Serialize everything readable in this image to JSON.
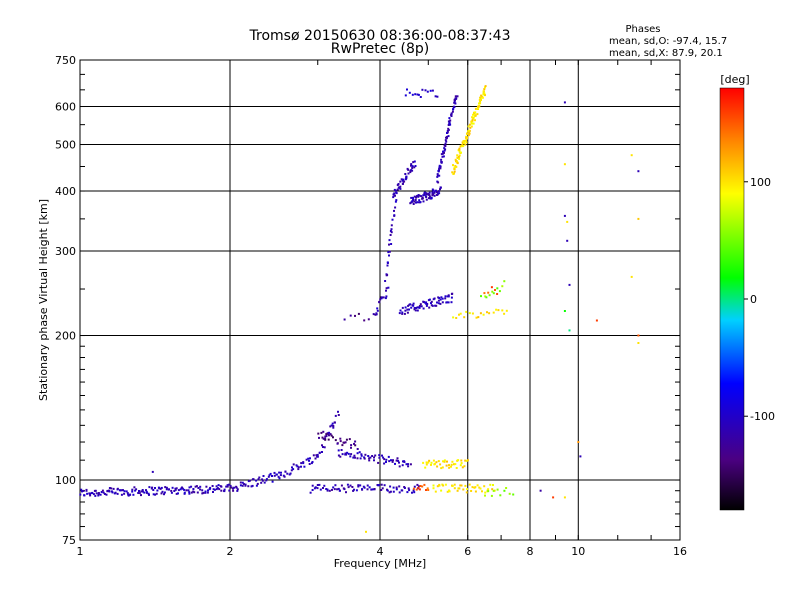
{
  "chart_data": {
    "type": "scatter",
    "title_line1": "Tromsø 20150630 08:36:00-08:37:43",
    "title_line2": "RwPretec (8p)",
    "xlabel": "Frequency [MHz]",
    "ylabel": "Stationary phase Virtual Height [km]",
    "x_scale": "log",
    "y_scale": "log",
    "xlim": [
      1,
      16
    ],
    "ylim": [
      75,
      750
    ],
    "x_ticks": [
      1,
      2,
      4,
      6,
      8,
      10,
      16
    ],
    "y_ticks": [
      75,
      100,
      200,
      300,
      400,
      500,
      600,
      750
    ],
    "grid": true,
    "phases_header": "Phases",
    "phases_o": "mean, sd,O: -97.4, 15.7",
    "phases_x": "mean, sd,X:  87.9, 20.1",
    "colorbar": {
      "label": "[deg]",
      "range": [
        -180,
        180
      ],
      "ticks": [
        -100,
        0,
        100
      ],
      "colormap": "rainbow"
    },
    "series": [
      {
        "phase": -110,
        "segments": [
          {
            "x0": 1.0,
            "x1": 2.0,
            "y0": 94,
            "y1": 96,
            "n": 160
          },
          {
            "x0": 2.0,
            "x1": 2.5,
            "y0": 96,
            "y1": 102,
            "n": 45
          },
          {
            "x0": 2.5,
            "x1": 3.0,
            "y0": 102,
            "y1": 112,
            "n": 35
          },
          {
            "x0": 3.0,
            "x1": 3.3,
            "y0": 112,
            "y1": 138,
            "n": 25
          },
          {
            "x0": 3.3,
            "x1": 4.6,
            "y0": 114,
            "y1": 108,
            "n": 60
          },
          {
            "x0": 2.9,
            "x1": 4.8,
            "y0": 96,
            "y1": 96,
            "n": 80
          }
        ]
      },
      {
        "phase": -135,
        "segments": [
          {
            "x0": 3.0,
            "x1": 3.6,
            "y0": 125,
            "y1": 118,
            "n": 30
          },
          {
            "x0": 3.4,
            "x1": 3.8,
            "y0": 218,
            "y1": 218,
            "n": 6
          }
        ]
      },
      {
        "phase": -110,
        "segments": [
          {
            "x0": 3.9,
            "x1": 4.15,
            "y0": 220,
            "y1": 250,
            "n": 18
          },
          {
            "x0": 4.1,
            "x1": 4.3,
            "y0": 260,
            "y1": 380,
            "n": 25
          },
          {
            "x0": 4.25,
            "x1": 4.7,
            "y0": 390,
            "y1": 460,
            "n": 45
          },
          {
            "x0": 4.6,
            "x1": 5.3,
            "y0": 380,
            "y1": 400,
            "n": 70
          },
          {
            "x0": 5.2,
            "x1": 5.7,
            "y0": 420,
            "y1": 640,
            "n": 70
          },
          {
            "x0": 4.4,
            "x1": 5.6,
            "y0": 225,
            "y1": 240,
            "n": 70
          }
        ]
      },
      {
        "phase": -95,
        "segments": [
          {
            "x0": 4.5,
            "x1": 5.2,
            "y0": 640,
            "y1": 640,
            "n": 15
          }
        ]
      },
      {
        "phase": 100,
        "segments": [
          {
            "x0": 5.6,
            "x1": 6.5,
            "y0": 440,
            "y1": 650,
            "n": 110
          },
          {
            "x0": 4.9,
            "x1": 6.0,
            "y0": 108,
            "y1": 108,
            "n": 40
          },
          {
            "x0": 5.1,
            "x1": 6.8,
            "y0": 96,
            "y1": 96,
            "n": 45
          },
          {
            "x0": 5.6,
            "x1": 7.2,
            "y0": 222,
            "y1": 222,
            "n": 20
          }
        ]
      },
      {
        "phase": 55,
        "segments": [
          {
            "x0": 6.5,
            "x1": 7.4,
            "y0": 94,
            "y1": 95,
            "n": 10
          },
          {
            "x0": 6.4,
            "x1": 7.1,
            "y0": 240,
            "y1": 255,
            "n": 10
          }
        ]
      },
      {
        "phase": 150,
        "segments": [
          {
            "x0": 4.7,
            "x1": 5.0,
            "y0": 96,
            "y1": 96,
            "n": 10
          },
          {
            "x0": 6.5,
            "x1": 6.9,
            "y0": 248,
            "y1": 248,
            "n": 5
          }
        ]
      }
    ],
    "points": [
      {
        "x": 1.4,
        "y": 104,
        "phase": -110
      },
      {
        "x": 3.75,
        "y": 78,
        "phase": 100
      },
      {
        "x": 9.4,
        "y": 612,
        "phase": -110
      },
      {
        "x": 9.4,
        "y": 455,
        "phase": 100
      },
      {
        "x": 9.4,
        "y": 355,
        "phase": -110
      },
      {
        "x": 9.5,
        "y": 345,
        "phase": 100
      },
      {
        "x": 9.5,
        "y": 315,
        "phase": -110
      },
      {
        "x": 9.6,
        "y": 255,
        "phase": -110
      },
      {
        "x": 9.4,
        "y": 225,
        "phase": 20
      },
      {
        "x": 9.6,
        "y": 205,
        "phase": 0
      },
      {
        "x": 10.0,
        "y": 120,
        "phase": 130
      },
      {
        "x": 10.1,
        "y": 112,
        "phase": -110
      },
      {
        "x": 9.4,
        "y": 92,
        "phase": 100
      },
      {
        "x": 8.4,
        "y": 95,
        "phase": -120
      },
      {
        "x": 8.9,
        "y": 92,
        "phase": 160
      },
      {
        "x": 10.9,
        "y": 215,
        "phase": 160
      },
      {
        "x": 12.8,
        "y": 475,
        "phase": 100
      },
      {
        "x": 13.2,
        "y": 440,
        "phase": -110
      },
      {
        "x": 13.2,
        "y": 350,
        "phase": 110
      },
      {
        "x": 12.8,
        "y": 265,
        "phase": 100
      },
      {
        "x": 13.2,
        "y": 200,
        "phase": 150
      },
      {
        "x": 13.2,
        "y": 193,
        "phase": 100
      }
    ]
  }
}
